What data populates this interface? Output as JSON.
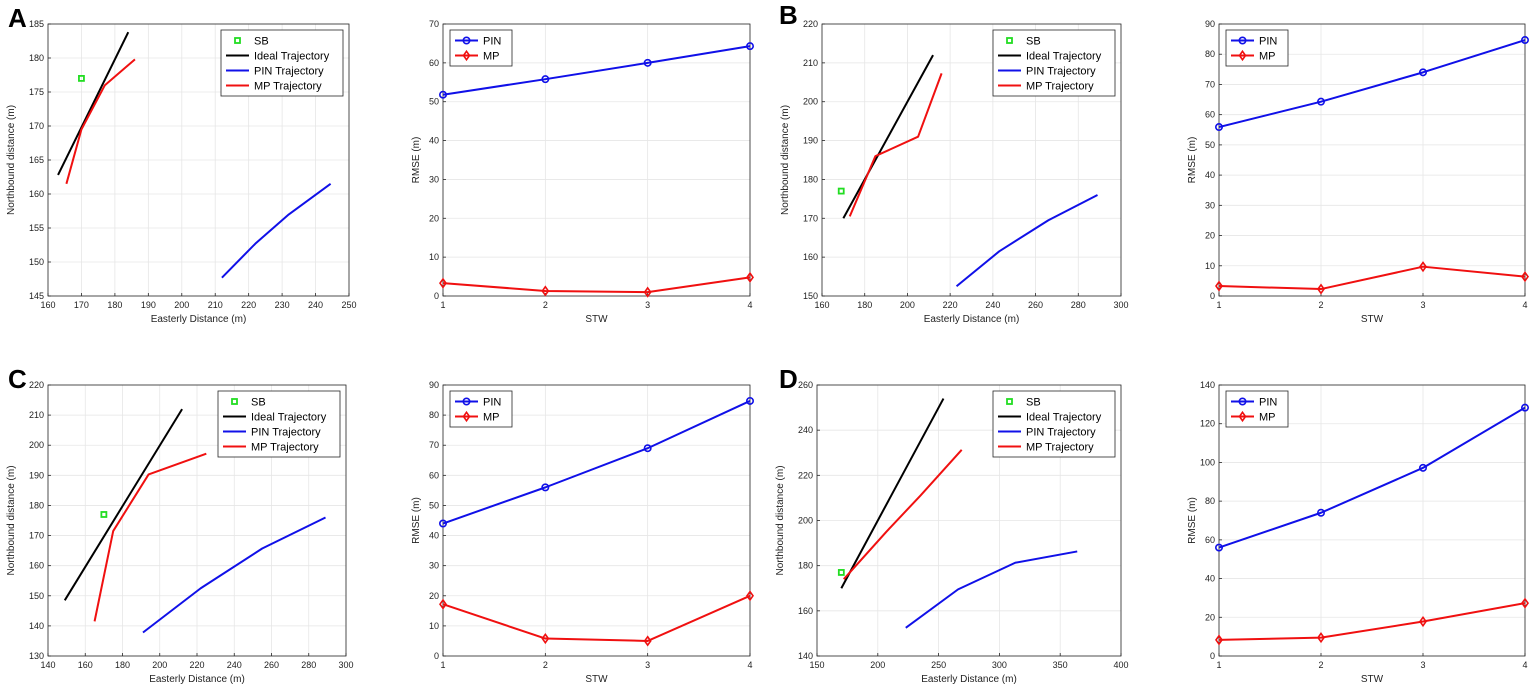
{
  "figure": {
    "panel_letters": [
      "A",
      "B",
      "C",
      "D"
    ]
  },
  "colors": {
    "ideal": "#000000",
    "pin": "#1010e8",
    "mp": "#f01010",
    "sb": "#22dd22",
    "grid": "#e6e6e6",
    "axis": "#262626"
  },
  "chart_data": [
    {
      "id": "A-traj",
      "panel": "A",
      "type": "line",
      "xlabel": "Easterly Distance (m)",
      "ylabel": "Northbound distance (m)",
      "xlim": [
        160,
        250
      ],
      "ylim": [
        145,
        185
      ],
      "xticks": [
        160,
        170,
        180,
        190,
        200,
        210,
        220,
        230,
        240,
        250
      ],
      "yticks": [
        145,
        150,
        155,
        160,
        165,
        170,
        175,
        180,
        185
      ],
      "legend_position": "top-right",
      "sb": {
        "name": "SB",
        "x": 170,
        "y": 177
      },
      "series": [
        {
          "name": "Ideal Trajectory",
          "color_key": "ideal",
          "x": [
            163,
            184
          ],
          "y": [
            162.8,
            183.8
          ]
        },
        {
          "name": "PIN Trajectory",
          "color_key": "pin",
          "x": [
            212,
            222,
            232,
            244.5
          ],
          "y": [
            147.7,
            152.7,
            157,
            161.5
          ]
        },
        {
          "name": "MP Trajectory",
          "color_key": "mp",
          "x": [
            165.5,
            170,
            177,
            186
          ],
          "y": [
            161.5,
            169.5,
            176,
            179.8
          ]
        }
      ]
    },
    {
      "id": "A-rmse",
      "panel": "A",
      "type": "line",
      "xlabel": "STW",
      "ylabel": "RMSE (m)",
      "xlim": [
        1,
        4
      ],
      "ylim": [
        0,
        70
      ],
      "xticks": [
        1,
        2,
        3,
        4
      ],
      "yticks": [
        0,
        10,
        20,
        30,
        40,
        50,
        60,
        70
      ],
      "legend_position": "top-left",
      "series": [
        {
          "name": "PIN",
          "color_key": "pin",
          "marker": "circle",
          "x": [
            1,
            2,
            3,
            4
          ],
          "y": [
            51.8,
            55.8,
            60,
            64.3
          ]
        },
        {
          "name": "MP",
          "color_key": "mp",
          "marker": "diamond",
          "x": [
            1,
            2,
            3,
            4
          ],
          "y": [
            3.3,
            1.3,
            1,
            4.8
          ]
        }
      ]
    },
    {
      "id": "B-traj",
      "panel": "B",
      "type": "line",
      "xlabel": "Easterly Distance (m)",
      "ylabel": "Northbound distance (m)",
      "xlim": [
        160,
        300
      ],
      "ylim": [
        150,
        220
      ],
      "xticks": [
        160,
        180,
        200,
        220,
        240,
        260,
        280,
        300
      ],
      "yticks": [
        150,
        160,
        170,
        180,
        190,
        200,
        210,
        220
      ],
      "legend_position": "top-right",
      "sb": {
        "name": "SB",
        "x": 169,
        "y": 177
      },
      "series": [
        {
          "name": "Ideal Trajectory",
          "color_key": "ideal",
          "x": [
            170,
            212
          ],
          "y": [
            170,
            212
          ]
        },
        {
          "name": "PIN Trajectory",
          "color_key": "pin",
          "x": [
            223,
            243,
            266,
            289
          ],
          "y": [
            152.5,
            161.5,
            169.5,
            176
          ]
        },
        {
          "name": "MP Trajectory",
          "color_key": "mp",
          "x": [
            173,
            185,
            205,
            216
          ],
          "y": [
            170.5,
            186,
            191,
            207.3
          ]
        }
      ]
    },
    {
      "id": "B-rmse",
      "panel": "B",
      "type": "line",
      "xlabel": "STW",
      "ylabel": "RMSE (m)",
      "xlim": [
        1,
        4
      ],
      "ylim": [
        0,
        90
      ],
      "xticks": [
        1,
        2,
        3,
        4
      ],
      "yticks": [
        0,
        10,
        20,
        30,
        40,
        50,
        60,
        70,
        80,
        90
      ],
      "legend_position": "top-left",
      "series": [
        {
          "name": "PIN",
          "color_key": "pin",
          "marker": "circle",
          "x": [
            1,
            2,
            3,
            4
          ],
          "y": [
            55.9,
            64.3,
            74,
            84.7
          ]
        },
        {
          "name": "MP",
          "color_key": "mp",
          "marker": "diamond",
          "x": [
            1,
            2,
            3,
            4
          ],
          "y": [
            3.3,
            2.3,
            9.7,
            6.4
          ]
        }
      ]
    },
    {
      "id": "C-traj",
      "panel": "C",
      "type": "line",
      "xlabel": "Easterly Distance (m)",
      "ylabel": "Northbound distance (m)",
      "xlim": [
        140,
        300
      ],
      "ylim": [
        130,
        220
      ],
      "xticks": [
        140,
        160,
        180,
        200,
        220,
        240,
        260,
        280,
        300
      ],
      "yticks": [
        130,
        140,
        150,
        160,
        170,
        180,
        190,
        200,
        210,
        220
      ],
      "legend_position": "top-right",
      "sb": {
        "name": "SB",
        "x": 170,
        "y": 177
      },
      "series": [
        {
          "name": "Ideal Trajectory",
          "color_key": "ideal",
          "x": [
            149,
            212
          ],
          "y": [
            148.5,
            212
          ]
        },
        {
          "name": "PIN Trajectory",
          "color_key": "pin",
          "x": [
            191,
            222,
            255,
            289
          ],
          "y": [
            137.8,
            152.5,
            165.7,
            176
          ]
        },
        {
          "name": "MP Trajectory",
          "color_key": "mp",
          "x": [
            165,
            175,
            194,
            225
          ],
          "y": [
            141.5,
            171.5,
            190.3,
            197.2
          ]
        }
      ]
    },
    {
      "id": "C-rmse",
      "panel": "C",
      "type": "line",
      "xlabel": "STW",
      "ylabel": "RMSE (m)",
      "xlim": [
        1,
        4
      ],
      "ylim": [
        0,
        90
      ],
      "xticks": [
        1,
        2,
        3,
        4
      ],
      "yticks": [
        0,
        10,
        20,
        30,
        40,
        50,
        60,
        70,
        80,
        90
      ],
      "legend_position": "top-left",
      "series": [
        {
          "name": "PIN",
          "color_key": "pin",
          "marker": "circle",
          "x": [
            1,
            2,
            3,
            4
          ],
          "y": [
            44,
            56,
            69,
            84.7
          ]
        },
        {
          "name": "MP",
          "color_key": "mp",
          "marker": "diamond",
          "x": [
            1,
            2,
            3,
            4
          ],
          "y": [
            17.2,
            5.8,
            5,
            20
          ]
        }
      ]
    },
    {
      "id": "D-traj",
      "panel": "D",
      "type": "line",
      "xlabel": "Easterly Distance (m)",
      "ylabel": "Northbound distance (m)",
      "xlim": [
        150,
        400
      ],
      "ylim": [
        140,
        260
      ],
      "xticks": [
        150,
        200,
        250,
        300,
        350,
        400
      ],
      "yticks": [
        140,
        160,
        180,
        200,
        220,
        240,
        260
      ],
      "legend_position": "top-right",
      "sb": {
        "name": "SB",
        "x": 170,
        "y": 177
      },
      "series": [
        {
          "name": "Ideal Trajectory",
          "color_key": "ideal",
          "x": [
            170,
            254
          ],
          "y": [
            170,
            254
          ]
        },
        {
          "name": "PIN Trajectory",
          "color_key": "pin",
          "x": [
            223,
            266,
            313,
            364
          ],
          "y": [
            152.5,
            169.5,
            181.3,
            186.3
          ]
        },
        {
          "name": "MP Trajectory",
          "color_key": "mp",
          "x": [
            172,
            207,
            235,
            269
          ],
          "y": [
            174,
            195,
            211,
            231.3
          ]
        }
      ]
    },
    {
      "id": "D-rmse",
      "panel": "D",
      "type": "line",
      "xlabel": "STW",
      "ylabel": "RMSE (m)",
      "xlim": [
        1,
        4
      ],
      "ylim": [
        0,
        140
      ],
      "xticks": [
        1,
        2,
        3,
        4
      ],
      "yticks": [
        0,
        20,
        40,
        60,
        80,
        100,
        120,
        140
      ],
      "legend_position": "top-left",
      "series": [
        {
          "name": "PIN",
          "color_key": "pin",
          "marker": "circle",
          "x": [
            1,
            2,
            3,
            4
          ],
          "y": [
            56,
            74,
            97.2,
            128.3
          ]
        },
        {
          "name": "MP",
          "color_key": "mp",
          "marker": "diamond",
          "x": [
            1,
            2,
            3,
            4
          ],
          "y": [
            8.3,
            9.5,
            17.8,
            27.3
          ]
        }
      ]
    }
  ]
}
